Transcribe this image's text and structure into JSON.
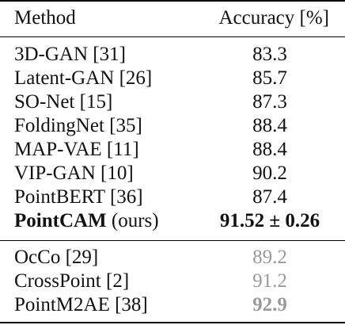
{
  "table": {
    "header": {
      "method": "Method",
      "accuracy": "Accuracy [%]"
    },
    "rows": [
      {
        "method": "3D-GAN [31]",
        "accuracy": "83.3"
      },
      {
        "method": "Latent-GAN [26]",
        "accuracy": "85.7"
      },
      {
        "method": "SO-Net [15]",
        "accuracy": "87.3"
      },
      {
        "method": "FoldingNet [35]",
        "accuracy": "88.4"
      },
      {
        "method": "MAP-VAE [11]",
        "accuracy": "88.4"
      },
      {
        "method": "VIP-GAN [10]",
        "accuracy": "90.2"
      },
      {
        "method": "PointBERT [36]",
        "accuracy": "87.4"
      },
      {
        "method_bold": "PointCAM",
        "method_suffix": " (ours)",
        "accuracy": "91.52 ± 0.26"
      }
    ],
    "other_rows": [
      {
        "method": "OcCo [29]",
        "accuracy": "89.2"
      },
      {
        "method": "CrossPoint [2]",
        "accuracy": "91.2"
      },
      {
        "method": "PointM2AE [38]",
        "accuracy": "92.9"
      }
    ]
  },
  "colors": {
    "text": "#111111",
    "gray_value": "#9a9a9a",
    "rule": "#000000"
  }
}
